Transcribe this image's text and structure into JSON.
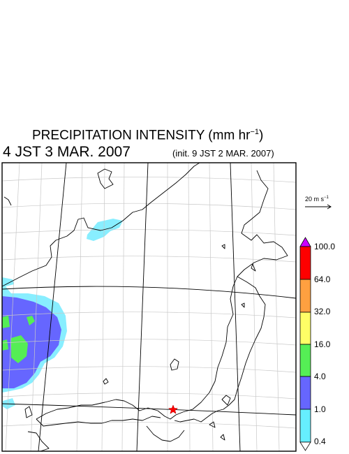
{
  "header": {
    "title_main": "PRECIPITATION INTENSITY (mm hr",
    "title_exp": "−1",
    "title_end": ")",
    "valid_time": "4 JST 3 MAR. 2007",
    "init_time": "(init. 9 JST 2 MAR. 2007)"
  },
  "vector_key": {
    "label_main": "20 m s",
    "label_exp": "−1"
  },
  "colorbar": {
    "levels": [
      "100.0",
      "64.0",
      "32.0",
      "16.0",
      "4.0",
      "1.0",
      "0.4"
    ],
    "colors": [
      "#cc00ff",
      "#ff0000",
      "#ffa040",
      "#ffff66",
      "#55ee55",
      "#6666ff",
      "#66eeff",
      "#ffffff"
    ]
  },
  "map": {
    "marker": "red-star"
  }
}
